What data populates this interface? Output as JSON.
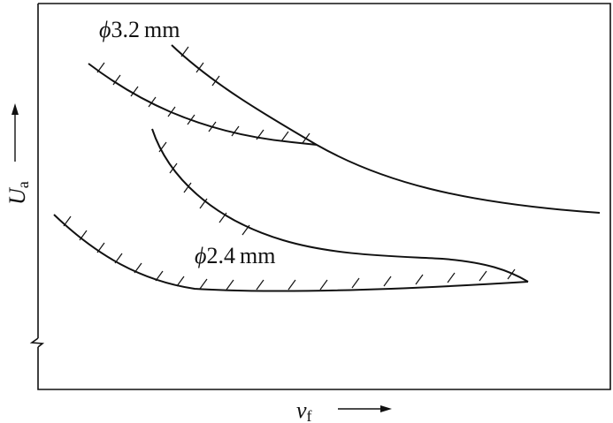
{
  "labels": {
    "curve_large": {
      "symbol": "ϕ",
      "value": "3.2",
      "unit": "mm"
    },
    "curve_small": {
      "symbol": "ϕ",
      "value": "2.4",
      "unit": "mm"
    },
    "x_axis": {
      "symbol": "v",
      "subscript": "f"
    },
    "y_axis": {
      "symbol": "U",
      "subscript": "a"
    }
  },
  "colors": {
    "line": "#111111",
    "background": "#ffffff"
  }
}
